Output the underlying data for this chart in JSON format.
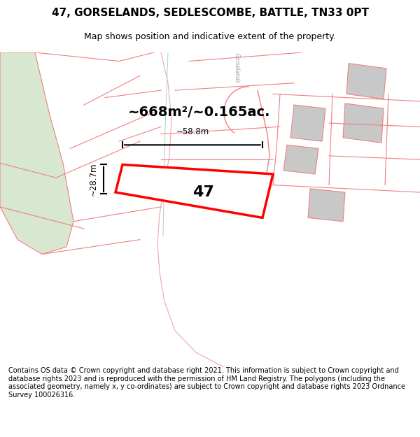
{
  "title_line1": "47, GORSELANDS, SEDLESCOMBE, BATTLE, TN33 0PT",
  "title_line2": "Map shows position and indicative extent of the property.",
  "area_text": "~668m²/~0.165ac.",
  "label_47": "47",
  "dim_width": "~58.8m",
  "dim_height": "~28.7m",
  "footer_text": "Contains OS data © Crown copyright and database right 2021. This information is subject to Crown copyright and database rights 2023 and is reproduced with the permission of HM Land Registry. The polygons (including the associated geometry, namely x, y co-ordinates) are subject to Crown copyright and database rights 2023 Ordnance Survey 100026316.",
  "bg_color": "#ffffff",
  "map_bg": "#f5f5f5",
  "red_color": "#ff0000",
  "pink_color": "#f08080",
  "green_area_color": "#d8e8d0",
  "grey_building_color": "#c8c8c8",
  "road_color": "#e8e8e8"
}
